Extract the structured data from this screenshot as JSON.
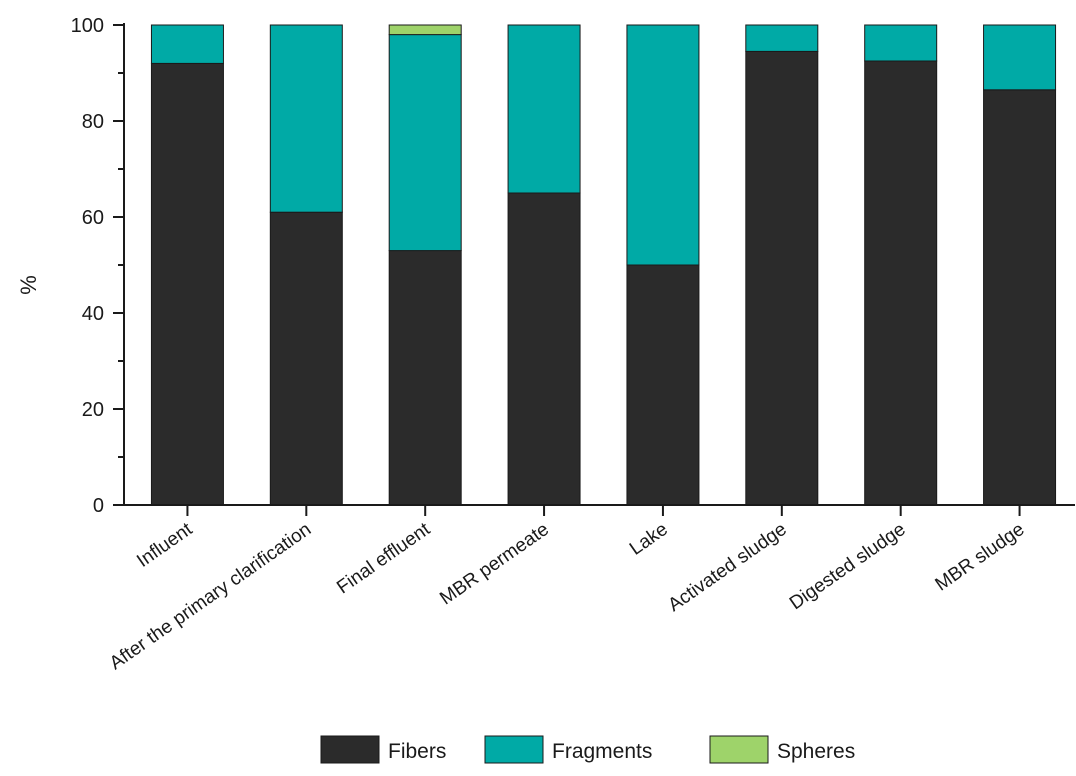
{
  "chart_data": {
    "type": "bar",
    "stacked": true,
    "title": "",
    "xlabel": "",
    "ylabel": "%",
    "ylim": [
      0,
      100
    ],
    "yticks": [
      0,
      20,
      40,
      60,
      80,
      100
    ],
    "grid": false,
    "legend_position": "bottom",
    "categories": [
      "Influent",
      "After the primary clarification",
      "Final effluent",
      "MBR permeate",
      "Lake",
      "Activated sludge",
      "Digested sludge",
      "MBR sludge"
    ],
    "series": [
      {
        "name": "Fibers",
        "color": "#2b2b2b",
        "values": [
          92,
          61,
          53,
          65,
          50,
          94.5,
          92.5,
          86.5
        ]
      },
      {
        "name": "Fragments",
        "color": "#00aaa6",
        "values": [
          8,
          39,
          45,
          35,
          50,
          5.5,
          7.5,
          13.5
        ]
      },
      {
        "name": "Spheres",
        "color": "#9ed36a",
        "values": [
          0,
          0,
          2,
          0,
          0,
          0,
          0,
          0
        ]
      }
    ]
  }
}
